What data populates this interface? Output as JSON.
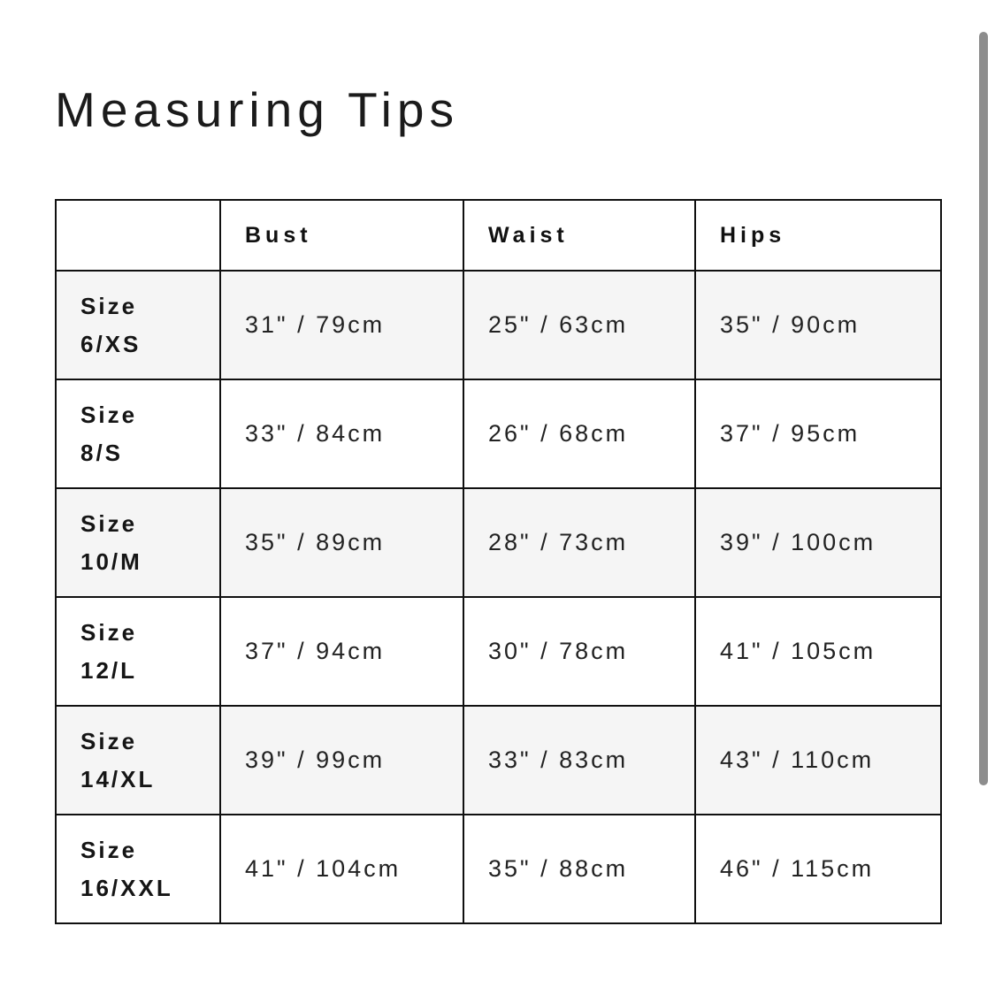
{
  "page": {
    "title": "Measuring Tips"
  },
  "size_chart": {
    "columns": [
      "Bust",
      "Waist",
      "Hips"
    ],
    "rows": [
      {
        "size_line1": "Size",
        "size_line2": "6/XS",
        "bust": "31\" / 79cm",
        "waist": "25\" / 63cm",
        "hips": "35\" / 90cm"
      },
      {
        "size_line1": "Size",
        "size_line2": "8/S",
        "bust": "33\" / 84cm",
        "waist": "26\" / 68cm",
        "hips": "37\" / 95cm"
      },
      {
        "size_line1": "Size",
        "size_line2": "10/M",
        "bust": "35\" / 89cm",
        "waist": "28\" / 73cm",
        "hips": "39\" / 100cm"
      },
      {
        "size_line1": "Size",
        "size_line2": "12/L",
        "bust": "37\" / 94cm",
        "waist": "30\" / 78cm",
        "hips": "41\" / 105cm"
      },
      {
        "size_line1": "Size",
        "size_line2": "14/XL",
        "bust": "39\" / 99cm",
        "waist": "33\" / 83cm",
        "hips": "43\" / 110cm"
      },
      {
        "size_line1": "Size",
        "size_line2": "16/XXL",
        "bust": "41\" / 104cm",
        "waist": "35\" / 88cm",
        "hips": "46\" / 115cm"
      }
    ]
  },
  "colors": {
    "row_stripe": "#f5f5f5",
    "table_border": "#101010",
    "scrollbar_thumb": "#8d8d8d",
    "text": "#1d1d1d"
  }
}
